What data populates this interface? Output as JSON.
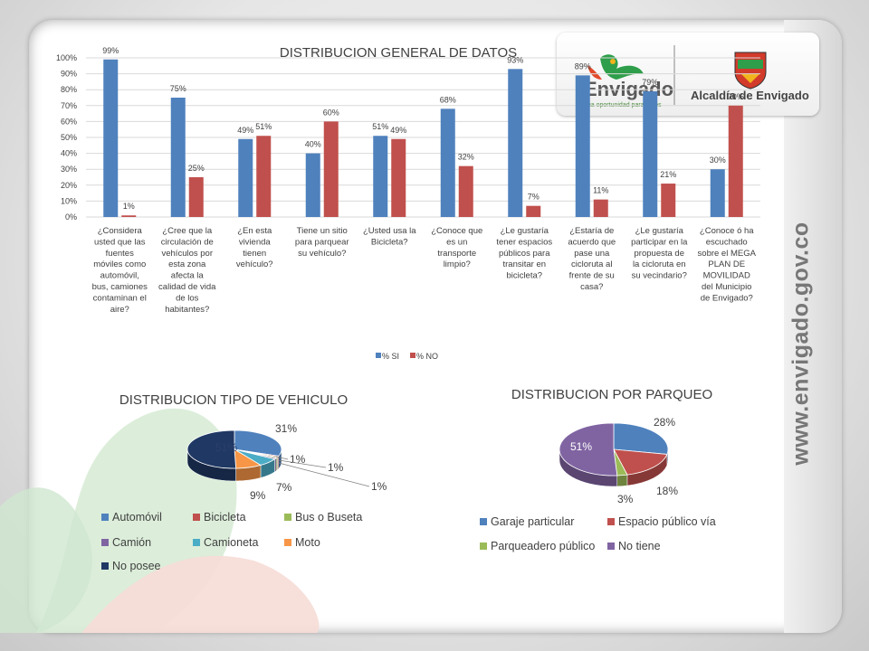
{
  "side_url": "www.envigado.gov.co",
  "logos": {
    "envigado_text": "Envigado",
    "envigado_slogan": "una oportunidad para todos",
    "alcaldia_text": "Alcaldía de Envigado"
  },
  "colors": {
    "si": "#4F81BD",
    "no": "#C0504D",
    "green": "#9BBB59",
    "purple": "#8064A2",
    "cyan": "#4BACC6",
    "orange": "#F79646",
    "navy": "#1F3864"
  },
  "chart_data": [
    {
      "type": "bar",
      "title": "DISTRIBUCION GENERAL DE DATOS",
      "ylim": [
        0,
        100
      ],
      "yticks": [
        "0%",
        "10%",
        "20%",
        "30%",
        "40%",
        "50%",
        "60%",
        "70%",
        "80%",
        "90%",
        "100%"
      ],
      "categories": [
        [
          "¿Considera",
          "usted que las",
          "fuentes",
          "móviles como",
          "automóvil,",
          "bus, camiones",
          "contaminan el",
          "aire?"
        ],
        [
          "¿Cree que la",
          "circulación de",
          "vehículos por",
          "esta zona",
          "afecta la",
          "calidad de vida",
          "de los",
          "habitantes?"
        ],
        [
          "¿En esta",
          "vivienda",
          "tienen",
          "vehículo?"
        ],
        [
          "Tiene un sitio",
          "para parquear",
          "su vehículo?"
        ],
        [
          "¿Usted usa la",
          "Bicicleta?"
        ],
        [
          "¿Conoce que",
          "es un",
          "transporte",
          "limpio?"
        ],
        [
          "¿Le gustaría",
          "tener espacios",
          "públicos para",
          "transitar en",
          "bicicleta?"
        ],
        [
          "¿Estaría de",
          "acuerdo que",
          "pase una",
          "cicloruta al",
          "frente de su",
          "casa?"
        ],
        [
          "¿Le gustaría",
          "participar en la",
          "propuesta de",
          "la cicloruta en",
          "su vecindario?"
        ],
        [
          "¿Conoce ó ha",
          "escuchado",
          "sobre el MEGA",
          "PLAN DE",
          "MOVILIDAD",
          "del Municipio",
          "de Envigado?"
        ]
      ],
      "series": [
        {
          "name": "% SI",
          "values": [
            99,
            75,
            49,
            40,
            51,
            68,
            93,
            89,
            79,
            30
          ],
          "labels": [
            "99%",
            "75%",
            "49%",
            "40%",
            "51%",
            "68%",
            "93%",
            "89%",
            "79%",
            "30%"
          ]
        },
        {
          "name": "% NO",
          "values": [
            1,
            25,
            51,
            60,
            49,
            32,
            7,
            11,
            21,
            70
          ],
          "labels": [
            "1%",
            "25%",
            "51%",
            "60%",
            "49%",
            "32%",
            "7%",
            "11%",
            "21%",
            "70%"
          ]
        }
      ],
      "legend": "bottom"
    },
    {
      "type": "pie",
      "title": "DISTRIBUCION TIPO DE VEHICULO",
      "slices": [
        {
          "name": "Automóvil",
          "value": 31,
          "label": "31%"
        },
        {
          "name": "Bicicleta",
          "value": 1,
          "label": "1%"
        },
        {
          "name": "Bus o Buseta",
          "value": 1,
          "label": "1%"
        },
        {
          "name": "Camión",
          "value": 1,
          "label": "1%"
        },
        {
          "name": "Camioneta",
          "value": 7,
          "label": "7%"
        },
        {
          "name": "Moto",
          "value": 9,
          "label": "9%"
        },
        {
          "name": "No posee",
          "value": 51,
          "label": "51%"
        }
      ],
      "legend": "bottom"
    },
    {
      "type": "pie",
      "title": "DISTRIBUCION POR PARQUEO",
      "slices": [
        {
          "name": "Garaje particular",
          "value": 28,
          "label": "28%"
        },
        {
          "name": "Espacio público vía",
          "value": 18,
          "label": "18%"
        },
        {
          "name": "Parqueadero público",
          "value": 3,
          "label": "3%"
        },
        {
          "name": "No tiene",
          "value": 51,
          "label": "51%"
        }
      ],
      "legend": "bottom"
    }
  ]
}
